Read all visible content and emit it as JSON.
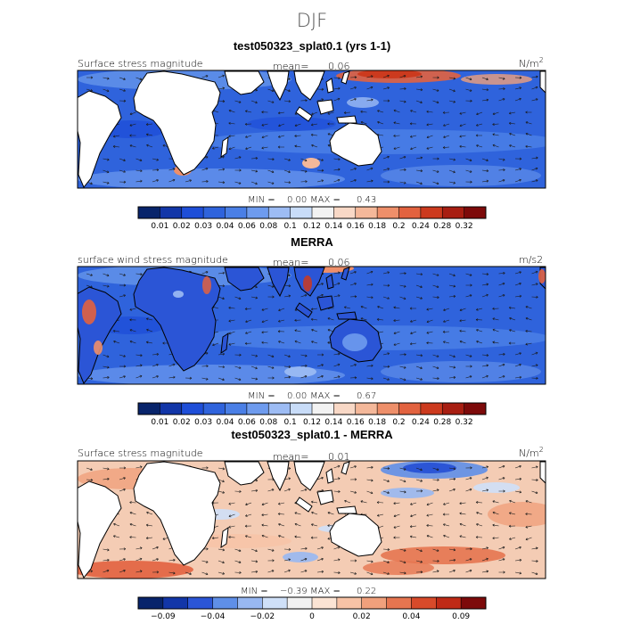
{
  "season": "DJF",
  "colors": {
    "ocean_base_abs": "#2f63dc",
    "ocean_base_diff": "#f4ccb4",
    "land": "#ffffff",
    "coast": "#000000",
    "arrow": "#1a1a1a"
  },
  "chart_data": [
    {
      "type": "heatmap",
      "title": "test050323_splat0.1 (yrs 1-1)",
      "left_label": "Surface stress magnitude",
      "mean_label": "mean=",
      "mean_value": "0.06",
      "units": "N/m",
      "units_sup": "2",
      "min_label": "MIN =",
      "min_value": "0.00",
      "max_label": "MAX =",
      "max_value": "0.43",
      "land_style": "blank",
      "colorbar": {
        "colors": [
          "#08246b",
          "#1236a8",
          "#1e4ed8",
          "#2f63dc",
          "#4a7fe6",
          "#6e9bee",
          "#9dbcf4",
          "#c8dcf8",
          "#f2f2f2",
          "#f8d8c6",
          "#f4b89a",
          "#ee8f6a",
          "#e2623f",
          "#cc3a1e",
          "#a81e12",
          "#7d0a0a"
        ],
        "tick_labels": [
          "0.01",
          "0.02",
          "0.03",
          "0.04",
          "0.06",
          "0.08",
          "0.1",
          "0.12",
          "0.14",
          "0.16",
          "0.18",
          "0.2",
          "0.24",
          "0.28",
          "0.32"
        ]
      }
    },
    {
      "type": "heatmap",
      "title": "MERRA",
      "left_label": "surface wind stress magnitude",
      "mean_label": "mean=",
      "mean_value": "0.06",
      "units": "m/s2",
      "units_sup": "",
      "min_label": "MIN =",
      "min_value": "0.00",
      "max_label": "MAX =",
      "max_value": "0.67",
      "land_style": "filled",
      "colorbar": {
        "colors": [
          "#08246b",
          "#1236a8",
          "#1e4ed8",
          "#2f63dc",
          "#4a7fe6",
          "#6e9bee",
          "#9dbcf4",
          "#c8dcf8",
          "#f2f2f2",
          "#f8d8c6",
          "#f4b89a",
          "#ee8f6a",
          "#e2623f",
          "#cc3a1e",
          "#a81e12",
          "#7d0a0a"
        ],
        "tick_labels": [
          "0.01",
          "0.02",
          "0.03",
          "0.04",
          "0.06",
          "0.08",
          "0.1",
          "0.12",
          "0.14",
          "0.16",
          "0.18",
          "0.2",
          "0.24",
          "0.28",
          "0.32"
        ]
      }
    },
    {
      "type": "heatmap",
      "title": "test050323_splat0.1 - MERRA",
      "left_label": "Surface stress magnitude",
      "mean_label": "mean=",
      "mean_value": "0.01",
      "units": "N/m",
      "units_sup": "2",
      "min_label": "MIN =",
      "min_value": "−0.39",
      "max_label": "MAX =",
      "max_value": "0.22",
      "land_style": "blank",
      "colorbar": {
        "colors": [
          "#08246b",
          "#1236a8",
          "#2b55d6",
          "#5f8fe8",
          "#98b8f2",
          "#cfe0f8",
          "#f2f2f2",
          "#fbe4d4",
          "#f7c3a6",
          "#f0a07c",
          "#e67550",
          "#d84a2a",
          "#bf2a16",
          "#7d0a0a"
        ],
        "tick_labels": [
          "−0.09",
          "",
          "−0.04",
          "",
          "−0.02",
          "",
          "0",
          "",
          "0.02",
          "",
          "0.04",
          "",
          "0.09"
        ]
      }
    }
  ]
}
